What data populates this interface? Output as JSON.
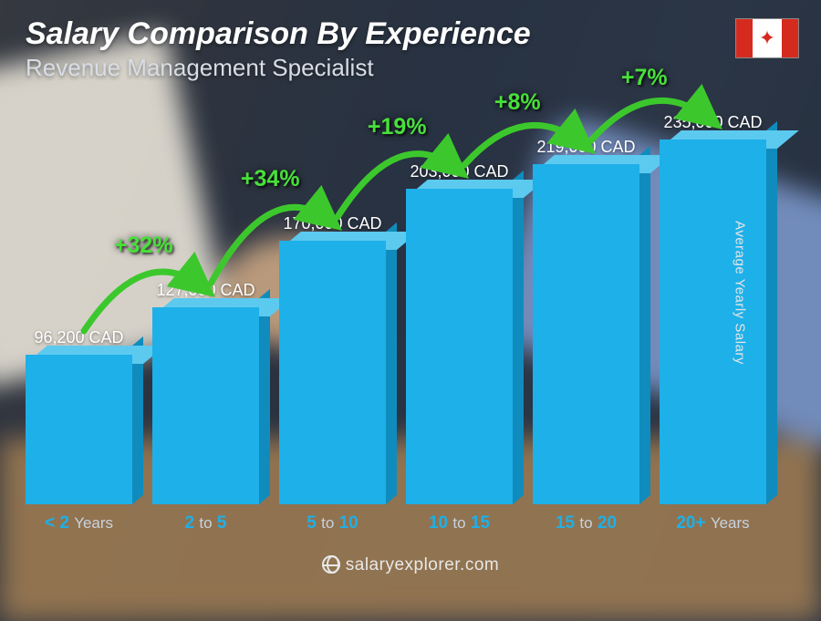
{
  "title": "Salary Comparison By Experience",
  "subtitle": "Revenue Management Specialist",
  "yaxis_label": "Average Yearly Salary",
  "footer": "salaryexplorer.com",
  "country_flag": "canada",
  "chart": {
    "type": "bar",
    "currency": "CAD",
    "max_value": 235000,
    "bar_front_color": "#1eb0e8",
    "bar_top_color": "#5cc9ef",
    "bar_side_color": "#0f8cbd",
    "xlabel_accent_color": "#1eb0e8",
    "xlabel_muted_color": "#c8d2dd",
    "arc_color": "#3cc82d",
    "arc_label_color": "#48e03a",
    "value_label_color": "#ffffff",
    "value_label_fontsize": 18,
    "arc_label_fontsize": 25,
    "bars": [
      {
        "label_pre": "< 2",
        "label_post": "Years",
        "value": 96200,
        "value_label": "96,200 CAD",
        "increase_pct": null
      },
      {
        "label_pre": "2",
        "label_mid": "to",
        "label_post": "5",
        "value": 127000,
        "value_label": "127,000 CAD",
        "increase_pct": "+32%"
      },
      {
        "label_pre": "5",
        "label_mid": "to",
        "label_post": "10",
        "value": 170000,
        "value_label": "170,000 CAD",
        "increase_pct": "+34%"
      },
      {
        "label_pre": "10",
        "label_mid": "to",
        "label_post": "15",
        "value": 203000,
        "value_label": "203,000 CAD",
        "increase_pct": "+19%"
      },
      {
        "label_pre": "15",
        "label_mid": "to",
        "label_post": "20",
        "value": 219000,
        "value_label": "219,000 CAD",
        "increase_pct": "+8%"
      },
      {
        "label_pre": "20+",
        "label_post": "Years",
        "value": 235000,
        "value_label": "235,000 CAD",
        "increase_pct": "+7%"
      }
    ]
  }
}
